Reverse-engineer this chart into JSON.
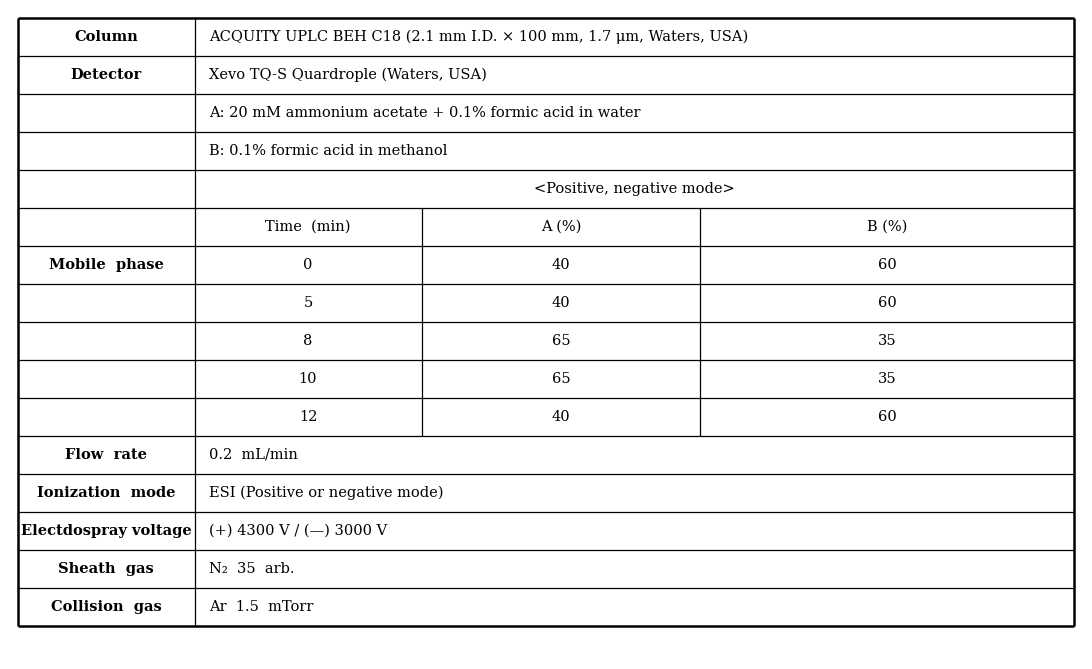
{
  "bg_color": "#ffffff",
  "line_color": "#000000",
  "text_color": "#000000",
  "font_size": 10.5,
  "bold_font_size": 10.5,
  "simple_rows": [
    {
      "key": "Column",
      "label": "Column",
      "content": "ACQUITY UPLC BEH C18 (2.1 mm I.D. × 100 mm, 1.7 μm, Waters, USA)"
    },
    {
      "key": "Detector",
      "label": "Detector",
      "content": "Xevo TQ-S Quardrople (Waters, USA)"
    },
    {
      "key": "Flow_rate",
      "label": "Flow  rate",
      "content": "0.2  mL/min"
    },
    {
      "key": "Ionization",
      "label": "Ionization  mode",
      "content": "ESI (Positive or negative mode)"
    },
    {
      "key": "Electdospray",
      "label": "Electdospray voltage",
      "content": "(+) 4300 V / (—) 3000 V"
    },
    {
      "key": "Sheath",
      "label": "Sheath  gas",
      "content": "N₂  35  arb."
    },
    {
      "key": "Collision",
      "label": "Collision  gas",
      "content": "Ar  1.5  mTorr"
    }
  ],
  "mobile_label": "Mobile  phase",
  "mobile_A": "A: 20 mM ammonium acetate + 0.1% formic acid in water",
  "mobile_B": "B: 0.1% formic acid in methanol",
  "mobile_mode": "<Positive, negative mode>",
  "gradient_header": [
    "Time  (min)",
    "A (%)",
    "B (%)"
  ],
  "gradient_data": [
    [
      "0",
      "40",
      "60"
    ],
    [
      "5",
      "40",
      "60"
    ],
    [
      "8",
      "65",
      "35"
    ],
    [
      "10",
      "65",
      "35"
    ],
    [
      "12",
      "40",
      "60"
    ]
  ]
}
